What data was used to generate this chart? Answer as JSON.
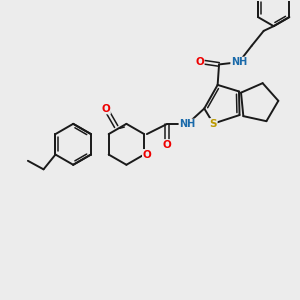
{
  "bg": "#ececec",
  "bond_color": "#1a1a1a",
  "O_color": "#ee0000",
  "N_color": "#1a6aaa",
  "S_color": "#bb9900",
  "lw": 1.4,
  "lw2": 1.1,
  "fs": 7.5,
  "fs_small": 6.0,
  "xlim": [
    0,
    10.5
  ],
  "ylim": [
    0,
    10.5
  ]
}
